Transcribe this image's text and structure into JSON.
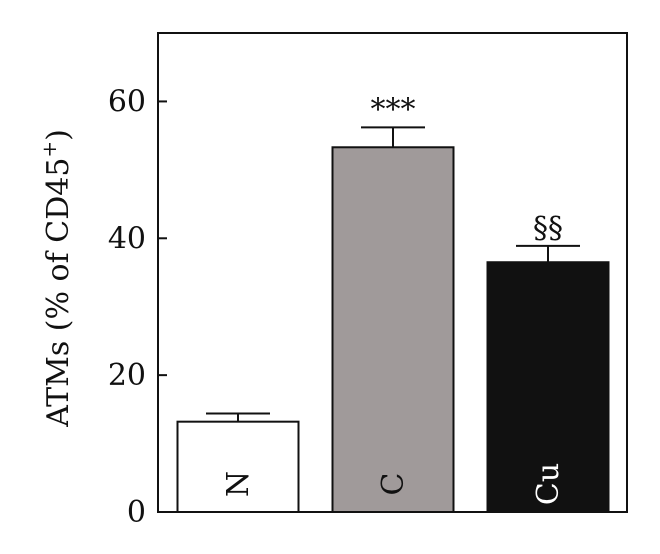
{
  "chart_data": {
    "type": "bar",
    "categories": [
      "N",
      "C",
      "Cu"
    ],
    "values": [
      13.2,
      53.3,
      36.5
    ],
    "errors": [
      1.2,
      2.9,
      2.4
    ],
    "annotations": [
      "",
      "***",
      "§§"
    ],
    "colors": [
      "#ffffff",
      "#a09a9a",
      "#111111"
    ],
    "label_colors": [
      "#111111",
      "#111111",
      "#ffffff"
    ],
    "ylabel": "ATMs (% of CD45",
    "ylabel_sup": "+",
    "ylabel_close": ")",
    "ylim": [
      0,
      70
    ],
    "yticks": [
      0,
      20,
      40,
      60
    ],
    "grid": false
  }
}
